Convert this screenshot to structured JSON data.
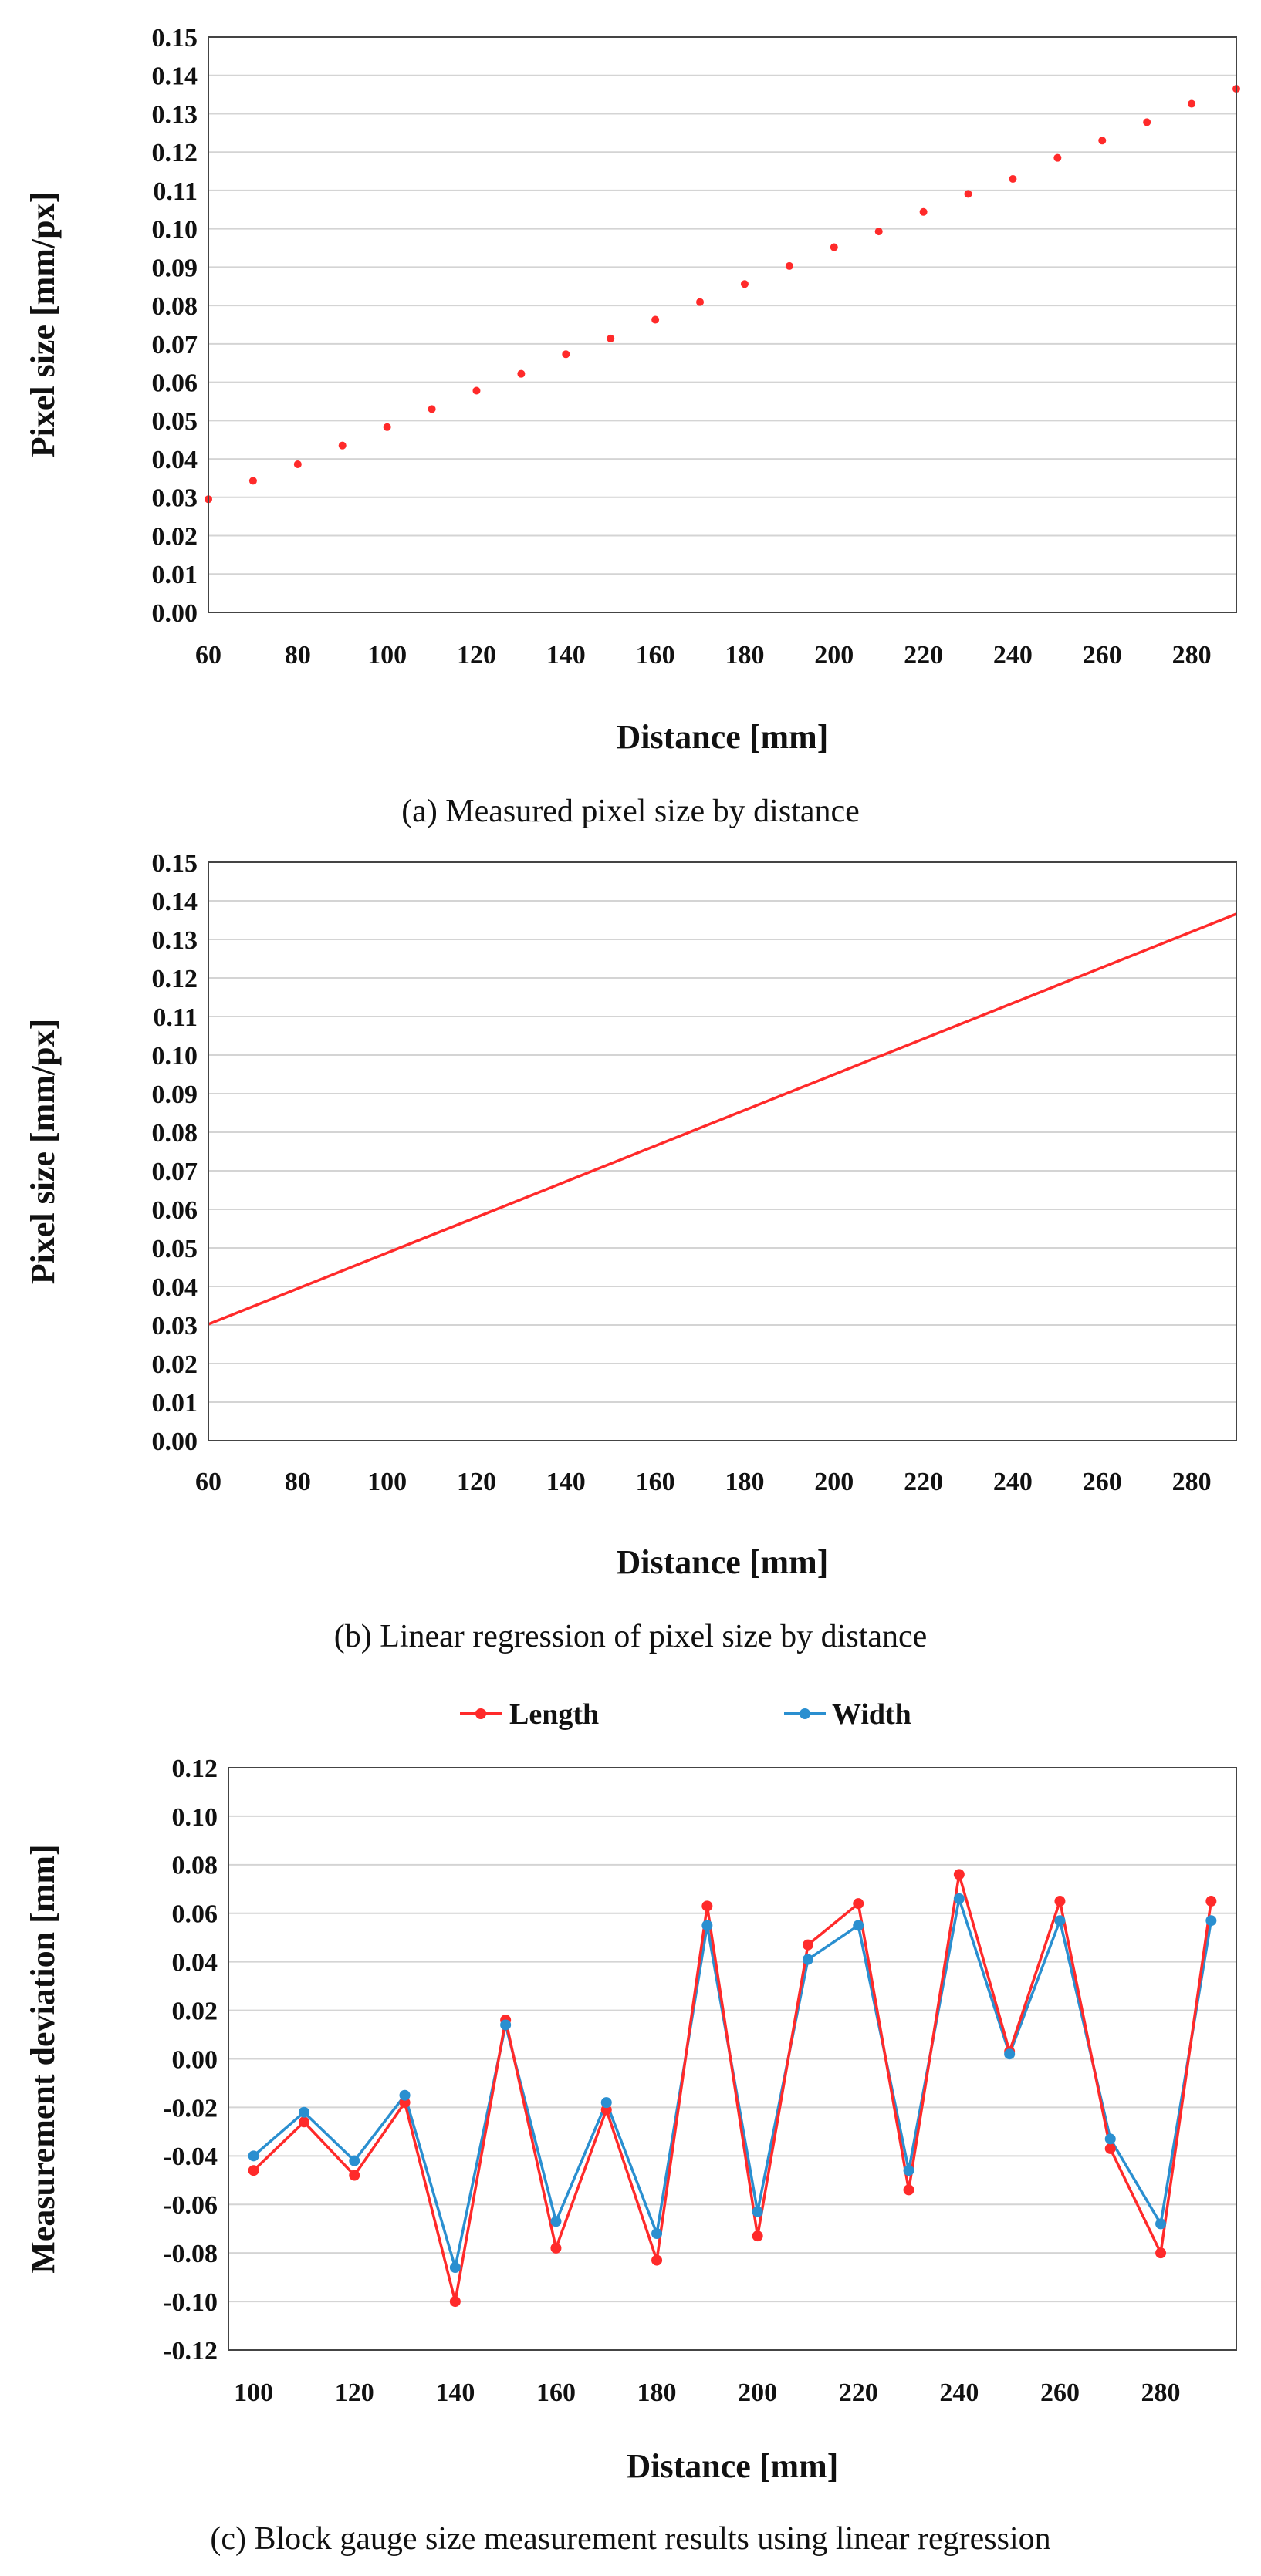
{
  "chart_data": [
    {
      "type": "scatter",
      "xlabel": "Distance [mm]",
      "ylabel": "Pixel size [mm/px]",
      "caption": "(a) Measured pixel size by distance",
      "xlim": [
        60,
        290
      ],
      "ylim": [
        0,
        0.15
      ],
      "xticks": [
        "60",
        "80",
        "100",
        "120",
        "140",
        "160",
        "180",
        "200",
        "220",
        "240",
        "260",
        "280"
      ],
      "yticks": [
        "0.00",
        "0.01",
        "0.02",
        "0.03",
        "0.04",
        "0.05",
        "0.06",
        "0.07",
        "0.08",
        "0.09",
        "0.10",
        "0.11",
        "0.12",
        "0.13",
        "0.14",
        "0.15"
      ],
      "grid": true,
      "series": [
        {
          "color": "#ff2a2a",
          "x": [
            60,
            70,
            80,
            90,
            100,
            110,
            120,
            130,
            140,
            150,
            160,
            170,
            180,
            190,
            200,
            210,
            220,
            230,
            240,
            250,
            260,
            270,
            280,
            290
          ],
          "y": [
            0.0295,
            0.0343,
            0.0386,
            0.0435,
            0.0483,
            0.053,
            0.0578,
            0.0622,
            0.0673,
            0.0714,
            0.0763,
            0.0809,
            0.0856,
            0.0903,
            0.0952,
            0.0993,
            0.1044,
            0.1091,
            0.113,
            0.1185,
            0.123,
            0.1278,
            0.1326,
            0.1365
          ]
        }
      ]
    },
    {
      "type": "line",
      "xlabel": "Distance [mm]",
      "ylabel": "Pixel size [mm/px]",
      "caption": "(b) Linear regression of pixel size by distance",
      "xlim": [
        60,
        290
      ],
      "ylim": [
        0,
        0.15
      ],
      "xticks": [
        "60",
        "80",
        "100",
        "120",
        "140",
        "160",
        "180",
        "200",
        "220",
        "240",
        "260",
        "280"
      ],
      "yticks": [
        "0.00",
        "0.01",
        "0.02",
        "0.03",
        "0.04",
        "0.05",
        "0.06",
        "0.07",
        "0.08",
        "0.09",
        "0.10",
        "0.11",
        "0.12",
        "0.13",
        "0.14",
        "0.15"
      ],
      "grid": true,
      "series": [
        {
          "color": "#ff2a2a",
          "x": [
            60,
            290
          ],
          "y": [
            0.0302,
            0.1366
          ]
        }
      ]
    },
    {
      "type": "line",
      "xlabel": "Distance [mm]",
      "ylabel": "Measurement deviation [mm]",
      "caption": "(c) Block gauge size measurement results using linear regression",
      "xlim": [
        95,
        295
      ],
      "ylim": [
        -0.12,
        0.12
      ],
      "xticks": [
        "100",
        "120",
        "140",
        "160",
        "180",
        "200",
        "220",
        "240",
        "260",
        "280"
      ],
      "yticks": [
        "-0.12",
        "-0.10",
        "-0.08",
        "-0.06",
        "-0.04",
        "-0.02",
        "0.00",
        "0.02",
        "0.04",
        "0.06",
        "0.08",
        "0.10",
        "0.12"
      ],
      "grid": true,
      "legend": "top-center",
      "x": [
        100,
        110,
        120,
        130,
        140,
        150,
        160,
        170,
        180,
        190,
        200,
        210,
        220,
        230,
        240,
        250,
        260,
        270,
        280,
        290
      ],
      "series": [
        {
          "name": "Length",
          "color": "#ff2a2a",
          "values": [
            -0.046,
            -0.026,
            -0.048,
            -0.018,
            -0.1,
            0.016,
            -0.078,
            -0.021,
            -0.083,
            0.063,
            -0.073,
            0.047,
            0.064,
            -0.054,
            0.076,
            0.003,
            0.065,
            -0.037,
            -0.08,
            0.065
          ]
        },
        {
          "name": "Width",
          "color": "#2a8fd0",
          "values": [
            -0.04,
            -0.022,
            -0.042,
            -0.015,
            -0.086,
            0.014,
            -0.067,
            -0.018,
            -0.072,
            0.055,
            -0.063,
            0.041,
            0.055,
            -0.046,
            0.066,
            0.002,
            0.057,
            -0.033,
            -0.068,
            0.057
          ]
        }
      ]
    }
  ]
}
